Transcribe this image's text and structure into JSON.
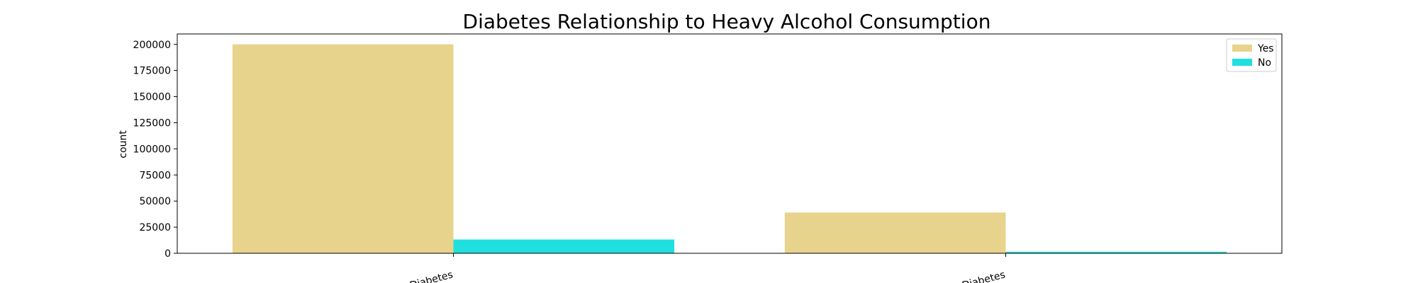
{
  "chart_data": {
    "type": "bar",
    "title": "Diabetes Relationship to Heavy Alcohol Consumption",
    "xlabel": "",
    "ylabel": "count",
    "categories": [
      "No Diabetes",
      "Diabetes"
    ],
    "series": [
      {
        "name": "Yes",
        "color": "#e8d38c",
        "values": [
          200100,
          39000
        ]
      },
      {
        "name": "No",
        "color": "#1fe0de",
        "values": [
          13200,
          1500
        ]
      }
    ],
    "ylim": [
      0,
      210000
    ],
    "yticks": [
      0,
      25000,
      50000,
      75000,
      100000,
      125000,
      150000,
      175000,
      200000
    ],
    "ytick_labels": [
      "0",
      "25000",
      "50000",
      "75000",
      "100000",
      "125000",
      "150000",
      "175000",
      "200000"
    ],
    "xtick_rotation_deg": -15,
    "legend": {
      "position": "top-right",
      "entries": [
        "Yes",
        "No"
      ]
    },
    "grid": false
  }
}
